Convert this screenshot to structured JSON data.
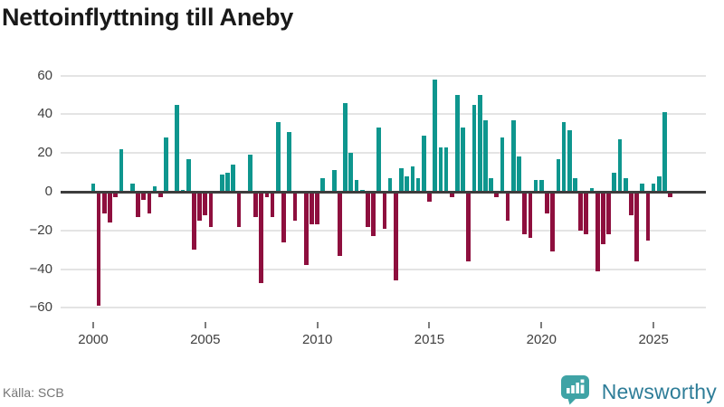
{
  "title": "Nettoinflyttning till Aneby",
  "source": "Källa: SCB",
  "branding": {
    "name": "Newsworthy",
    "icon": "newsworthy-speech-bubble-bar-chart-icon"
  },
  "colors": {
    "positive_bar": "#0e968e",
    "negative_bar": "#8e0f3e",
    "axis_line": "#3d3d3d",
    "gridline": "#e4e4e4",
    "title_text": "#191919",
    "tick_text": "#3f3f3f",
    "source_text": "#757575",
    "brand_text": "#2e7d98",
    "brand_icon": "#3fa3a5"
  },
  "chart_data": {
    "type": "bar",
    "title": "Nettoinflyttning till Aneby",
    "frequency": "quarterly",
    "start_year": 2000,
    "quarters_per_year": 4,
    "values": [
      4,
      -59,
      -11,
      -16,
      -3,
      22,
      0,
      4,
      -13,
      -4,
      -11,
      3,
      -3,
      28,
      0,
      45,
      1,
      17,
      -30,
      -15,
      -12,
      -18,
      0,
      9,
      10,
      14,
      -18,
      0,
      19,
      -13,
      -47,
      -3,
      -13,
      36,
      -26,
      31,
      -15,
      0,
      -38,
      -17,
      -17,
      7,
      0,
      11,
      -33,
      46,
      20,
      6,
      1,
      -18,
      -23,
      33,
      -19,
      7,
      -46,
      12,
      8,
      13,
      7,
      29,
      -5,
      58,
      23,
      23,
      -3,
      50,
      33,
      -36,
      45,
      50,
      37,
      7,
      -3,
      28,
      -15,
      37,
      18,
      -22,
      -24,
      6,
      6,
      -11,
      -31,
      17,
      36,
      32,
      7,
      -20,
      -22,
      2,
      -41,
      -27,
      -22,
      10,
      27,
      7,
      -12,
      -36,
      4,
      -25,
      4,
      8,
      41,
      -3
    ],
    "ylim": [
      -60,
      60
    ],
    "grid": true,
    "legend": "none",
    "y_ticks": [
      {
        "v": 60,
        "label": "60"
      },
      {
        "v": 40,
        "label": "40"
      },
      {
        "v": 20,
        "label": "20"
      },
      {
        "v": 0,
        "label": "0"
      },
      {
        "v": -20,
        "label": "−20"
      },
      {
        "v": -40,
        "label": "−40"
      },
      {
        "v": -60,
        "label": "−60"
      }
    ],
    "x_ticks": [
      {
        "year": 2000,
        "label": "2000"
      },
      {
        "year": 2005,
        "label": "2005"
      },
      {
        "year": 2010,
        "label": "2010"
      },
      {
        "year": 2015,
        "label": "2015"
      },
      {
        "year": 2020,
        "label": "2020"
      },
      {
        "year": 2025,
        "label": "2025"
      }
    ]
  }
}
